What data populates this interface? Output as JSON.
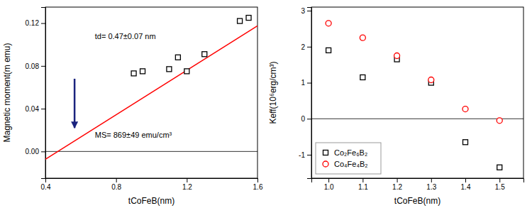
{
  "chart_data": [
    {
      "type": "scatter",
      "x_label": "tCoFeB(nm)",
      "y_label": "Magnetic moment(m emu)",
      "xlim": [
        0.4,
        1.6
      ],
      "ylim": [
        -0.025,
        0.135
      ],
      "xticks": [
        0.4,
        0.8,
        1.2,
        1.6
      ],
      "yticks": [
        {
          "value": 0,
          "label": "0.00"
        },
        {
          "value": 0.04,
          "label": "0.04"
        },
        {
          "value": 0.08,
          "label": "0.08"
        },
        {
          "value": 0.12,
          "label": "0.12"
        }
      ],
      "hline": 0,
      "series": [
        {
          "type": "line",
          "color": "#ff0000",
          "x": [
            0.4,
            1.6
          ],
          "values": [
            -0.00728,
            0.11752
          ]
        },
        {
          "type": "scatter",
          "marker": "square",
          "color": "black",
          "x": [
            0.9,
            0.95,
            1.1,
            1.15,
            1.2,
            1.3,
            1.5,
            1.55
          ],
          "values": [
            0.073,
            0.075,
            0.077,
            0.088,
            0.075,
            0.091,
            0.122,
            0.125
          ]
        }
      ],
      "annotations": [
        {
          "text": "td= 0.47±0.07 nm",
          "x": 0.68,
          "y": 0.105
        },
        {
          "text": "MS= 869±49 emu/cm³",
          "x": 0.68,
          "y": 0.013
        }
      ],
      "arrows": [
        {
          "x": 0.565,
          "y_start": 0.068,
          "y_end": 0.022,
          "color": "#1a237e"
        }
      ]
    },
    {
      "type": "scatter",
      "x_label": "tCoFeB(nm)",
      "y_label": "Keff(10⁶erg/cm³)",
      "xlim": [
        0.95,
        1.57
      ],
      "ylim": [
        -1.65,
        3.1
      ],
      "xticks": [
        {
          "value": 1,
          "label": "1.0"
        },
        1.1,
        1.2,
        1.3,
        1.4,
        1.5
      ],
      "yticks": [
        -1,
        0,
        1,
        2,
        3
      ],
      "hline": 0,
      "legend": "lower left",
      "series": [
        {
          "name": "Co₂Fe₆B₂",
          "type": "scatter",
          "marker": "square",
          "color": "black",
          "x": [
            1.0,
            1.1,
            1.2,
            1.3,
            1.4,
            1.5
          ],
          "values": [
            1.9,
            1.15,
            1.65,
            1.0,
            -0.65,
            -1.35
          ]
        },
        {
          "name": "Co₄Fe₄B₂",
          "type": "scatter",
          "marker": "circle",
          "color": "red",
          "x": [
            1.0,
            1.1,
            1.2,
            1.3,
            1.4,
            1.5
          ],
          "values": [
            2.65,
            2.25,
            1.75,
            1.08,
            0.27,
            -0.05
          ]
        }
      ]
    }
  ]
}
